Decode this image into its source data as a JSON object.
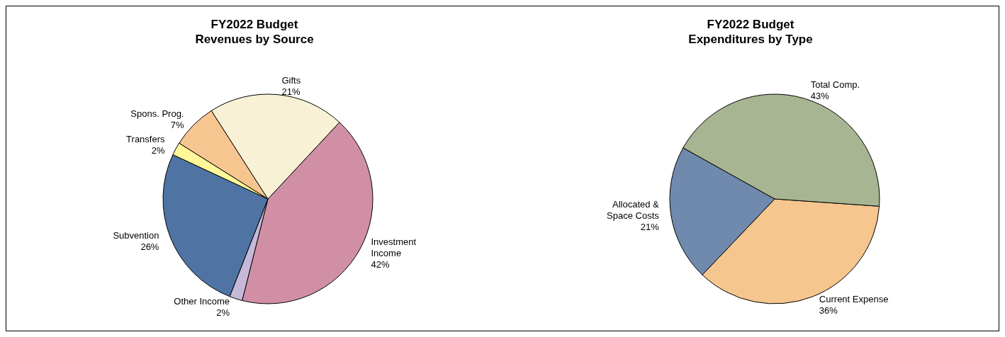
{
  "chart_data": [
    {
      "type": "pie",
      "title": "FY2022 Budget",
      "subtitle": "Revenues by Source",
      "categories": [
        "Investment\nIncome",
        "Other Income",
        "Subvention",
        "Transfers",
        "Spons. Prog.",
        "Gifts"
      ],
      "values": [
        42,
        2,
        26,
        2,
        7,
        21
      ],
      "colors": [
        "#d18fa5",
        "#c5b8d9",
        "#4f74a3",
        "#fff799",
        "#f7c690",
        "#f8f1d6"
      ],
      "value_labels": [
        "42%",
        "2%",
        "26%",
        "2%",
        "7%",
        "21%"
      ],
      "legend": false
    },
    {
      "type": "pie",
      "title": "FY2022 Budget",
      "subtitle": "Expenditures by Type",
      "categories": [
        "Current Expense",
        "Allocated &\nSpace Costs",
        "Total Comp."
      ],
      "values": [
        36,
        21,
        43
      ],
      "colors": [
        "#f6c68f",
        "#6f8aad",
        "#a7b592"
      ],
      "value_labels": [
        "36%",
        "21%",
        "43%"
      ],
      "legend": false
    }
  ]
}
